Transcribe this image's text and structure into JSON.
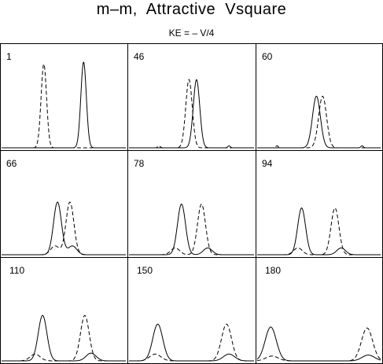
{
  "chart_data": {
    "type": "line",
    "title": "m–m,  Attractive  Vsquare",
    "subtitle": "KE = – V/4",
    "layout": {
      "rows": 3,
      "cols": 3
    },
    "series_styles": [
      {
        "style": "solid",
        "color": "#000000"
      },
      {
        "style": "dashed",
        "color": "#000000"
      }
    ],
    "xlim": [
      0,
      1
    ],
    "ylim": [
      0,
      1
    ],
    "panels": [
      {
        "label": "1",
        "solid": [
          {
            "x": 0.66,
            "h": 0.88,
            "w": 0.022
          }
        ],
        "dashed": [
          {
            "x": 0.34,
            "h": 0.86,
            "w": 0.022
          }
        ]
      },
      {
        "label": "46",
        "solid": [
          {
            "x": 0.54,
            "h": 0.7,
            "w": 0.026
          },
          {
            "x": 0.8,
            "h": 0.02,
            "w": 0.01
          }
        ],
        "dashed": [
          {
            "x": 0.48,
            "h": 0.7,
            "w": 0.026
          },
          {
            "x": 0.24,
            "h": 0.02,
            "w": 0.01
          }
        ]
      },
      {
        "label": "60",
        "solid": [
          {
            "x": 0.48,
            "h": 0.53,
            "w": 0.032
          },
          {
            "x": 0.85,
            "h": 0.02,
            "w": 0.01
          }
        ],
        "dashed": [
          {
            "x": 0.53,
            "h": 0.53,
            "w": 0.032
          },
          {
            "x": 0.16,
            "h": 0.02,
            "w": 0.01
          }
        ]
      },
      {
        "label": "66",
        "solid": [
          {
            "x": 0.45,
            "h": 0.54,
            "w": 0.032
          },
          {
            "x": 0.57,
            "h": 0.09,
            "w": 0.035
          }
        ],
        "dashed": [
          {
            "x": 0.55,
            "h": 0.54,
            "w": 0.032
          },
          {
            "x": 0.43,
            "h": 0.09,
            "w": 0.035
          }
        ]
      },
      {
        "label": "78",
        "solid": [
          {
            "x": 0.42,
            "h": 0.52,
            "w": 0.032
          },
          {
            "x": 0.63,
            "h": 0.07,
            "w": 0.035
          }
        ],
        "dashed": [
          {
            "x": 0.58,
            "h": 0.52,
            "w": 0.032
          },
          {
            "x": 0.37,
            "h": 0.07,
            "w": 0.035
          }
        ]
      },
      {
        "label": "94",
        "solid": [
          {
            "x": 0.36,
            "h": 0.48,
            "w": 0.032
          },
          {
            "x": 0.68,
            "h": 0.07,
            "w": 0.035
          }
        ],
        "dashed": [
          {
            "x": 0.63,
            "h": 0.48,
            "w": 0.032
          },
          {
            "x": 0.33,
            "h": 0.07,
            "w": 0.035
          }
        ]
      },
      {
        "label": "110",
        "solid": [
          {
            "x": 0.33,
            "h": 0.47,
            "w": 0.035
          },
          {
            "x": 0.72,
            "h": 0.08,
            "w": 0.04
          }
        ],
        "dashed": [
          {
            "x": 0.67,
            "h": 0.47,
            "w": 0.035
          },
          {
            "x": 0.27,
            "h": 0.07,
            "w": 0.04
          }
        ]
      },
      {
        "label": "150",
        "solid": [
          {
            "x": 0.23,
            "h": 0.38,
            "w": 0.04
          },
          {
            "x": 0.8,
            "h": 0.07,
            "w": 0.045
          }
        ],
        "dashed": [
          {
            "x": 0.78,
            "h": 0.38,
            "w": 0.04
          },
          {
            "x": 0.21,
            "h": 0.07,
            "w": 0.045
          }
        ]
      },
      {
        "label": "180",
        "solid": [
          {
            "x": 0.11,
            "h": 0.35,
            "w": 0.045
          },
          {
            "x": 0.9,
            "h": 0.06,
            "w": 0.05
          }
        ],
        "dashed": [
          {
            "x": 0.89,
            "h": 0.34,
            "w": 0.045
          },
          {
            "x": 0.12,
            "h": 0.05,
            "w": 0.05
          }
        ]
      }
    ]
  }
}
